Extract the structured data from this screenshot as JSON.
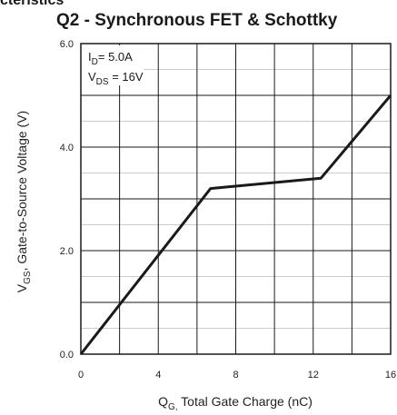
{
  "page": {
    "cropped_heading": "cteristics"
  },
  "chart_data": {
    "type": "line",
    "title": "Q2 - Synchronous FET & Schottky",
    "xlabel": {
      "main": "Q",
      "sub": "G,",
      "rest": " Total Gate Charge (nC)"
    },
    "ylabel": {
      "main": "V",
      "sub": "GS",
      "rest": ", Gate-to-Source Voltage (V)"
    },
    "xlim": [
      0,
      16
    ],
    "ylim": [
      0,
      6
    ],
    "x_ticks": [
      0,
      4,
      8,
      12,
      16
    ],
    "x_tick_labels": [
      "0",
      "4",
      "8",
      "12",
      "16"
    ],
    "y_ticks": [
      0,
      2,
      4,
      6
    ],
    "y_tick_labels": [
      "0.0",
      "2.0",
      "4.0",
      "6.0"
    ],
    "x_grid_step": 2,
    "y_grid_step": 1,
    "grid": true,
    "series": [
      {
        "x": [
          0,
          6.7,
          12.4,
          16
        ],
        "y": [
          0,
          3.2,
          3.4,
          5.0
        ]
      }
    ],
    "annotations": {
      "id": {
        "main": "I",
        "sub": "D",
        "rest": "= 5.0A"
      },
      "vds": {
        "main": "V",
        "sub": "DS",
        "rest": " = 16V"
      }
    },
    "colors": {
      "line": "#1a1a1a",
      "grid": "#1a1a1a",
      "minor_grid": "#bbbbbb"
    }
  }
}
